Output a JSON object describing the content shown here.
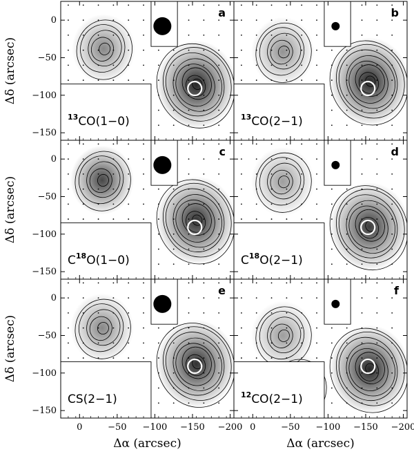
{
  "chart_data": {
    "type": "heatmap",
    "xlabel": "Δα (arcsec)",
    "ylabel": "Δδ (arcsec)",
    "xlim": [
      25,
      -205
    ],
    "ylim": [
      -160,
      25
    ],
    "x_ticks": [
      0,
      -50,
      -100,
      -150,
      -200
    ],
    "x_tick_labels": [
      "0",
      "−50",
      "−100",
      "−150",
      "−200"
    ],
    "y_ticks": [
      0,
      -50,
      -100,
      -150
    ],
    "y_tick_labels": [
      "0",
      "−50",
      "−100",
      "−150"
    ],
    "grid": false,
    "layout": "3 rows × 2 columns",
    "marker_circle_center": [
      -153,
      -91
    ],
    "panels": [
      {
        "letter": "a",
        "iso": "13",
        "molecule_pre": "",
        "molecule_post": "CO(1−0)",
        "beam": "large",
        "peaks": [
          [
            -155,
            -86,
            1.0
          ],
          [
            -32,
            -38,
            0.55
          ]
        ]
      },
      {
        "letter": "b",
        "iso": "13",
        "molecule_pre": "",
        "molecule_post": "CO(2−1)",
        "beam": "small",
        "peaks": [
          [
            -155,
            -82,
            1.0
          ],
          [
            -40,
            -42,
            0.5
          ]
        ]
      },
      {
        "letter": "c",
        "iso": "18",
        "molecule_pre": "C",
        "molecule_post": "O(1−0)",
        "beam": "large",
        "peaks": [
          [
            -155,
            -82,
            0.95
          ],
          [
            -30,
            -28,
            0.85
          ]
        ]
      },
      {
        "letter": "d",
        "iso": "18",
        "molecule_pre": "C",
        "molecule_post": "O(2−1)",
        "beam": "small",
        "peaks": [
          [
            -155,
            -90,
            0.9
          ],
          [
            -40,
            -30,
            0.45
          ]
        ]
      },
      {
        "letter": "e",
        "iso": "",
        "molecule_pre": "",
        "molecule_post": "CS(2−1)",
        "beam": "large",
        "peaks": [
          [
            -155,
            -88,
            0.95
          ],
          [
            -30,
            -40,
            0.55
          ]
        ]
      },
      {
        "letter": "f",
        "iso": "12",
        "molecule_pre": "",
        "molecule_post": "CO(2−1)",
        "beam": "small",
        "peaks": [
          [
            -155,
            -95,
            1.0
          ],
          [
            -40,
            -50,
            0.45
          ],
          [
            -60,
            -120,
            0.35
          ]
        ]
      }
    ]
  },
  "colors": {
    "ink": "#000000",
    "background": "#ffffff",
    "map_low": "#ffffff",
    "map_high": "#141414",
    "circle": "#ffffff"
  }
}
